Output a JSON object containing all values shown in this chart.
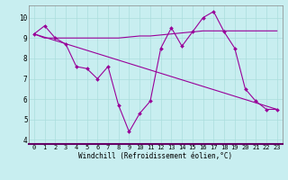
{
  "background_color": "#c8eef0",
  "line_color": "#990099",
  "xlim": [
    -0.5,
    23.5
  ],
  "ylim": [
    3.8,
    10.6
  ],
  "yticks": [
    4,
    5,
    6,
    7,
    8,
    9,
    10
  ],
  "xticks": [
    0,
    1,
    2,
    3,
    4,
    5,
    6,
    7,
    8,
    9,
    10,
    11,
    12,
    13,
    14,
    15,
    16,
    17,
    18,
    19,
    20,
    21,
    22,
    23
  ],
  "xlabel": "Windchill (Refroidissement éolien,°C)",
  "line1_x": [
    0,
    1,
    2,
    3,
    4,
    5,
    6,
    7,
    8,
    9,
    10,
    11,
    12,
    13,
    14,
    15,
    16,
    17,
    18,
    19,
    20,
    21,
    22,
    23
  ],
  "line1_y": [
    9.2,
    9.6,
    9.0,
    8.7,
    7.6,
    7.5,
    7.0,
    7.6,
    5.7,
    4.4,
    5.3,
    5.9,
    8.5,
    9.5,
    8.6,
    9.3,
    10.0,
    10.3,
    9.3,
    8.5,
    6.5,
    5.9,
    5.5,
    5.5
  ],
  "line2_x": [
    0,
    1,
    2,
    3,
    4,
    5,
    6,
    7,
    8,
    9,
    10,
    11,
    12,
    13,
    14,
    15,
    16,
    17,
    18,
    19,
    20,
    21,
    22,
    23
  ],
  "line2_y": [
    9.2,
    9.0,
    9.0,
    9.0,
    9.0,
    9.0,
    9.0,
    9.0,
    9.0,
    9.05,
    9.1,
    9.1,
    9.15,
    9.2,
    9.25,
    9.3,
    9.35,
    9.35,
    9.35,
    9.35,
    9.35,
    9.35,
    9.35,
    9.35
  ],
  "line3_x": [
    0,
    23
  ],
  "line3_y": [
    9.2,
    5.5
  ],
  "marker": "D",
  "markersize": 2.0,
  "linewidth": 0.8,
  "grid_color": "#aadddd",
  "tick_fontsize": 5.0,
  "xlabel_fontsize": 5.5
}
